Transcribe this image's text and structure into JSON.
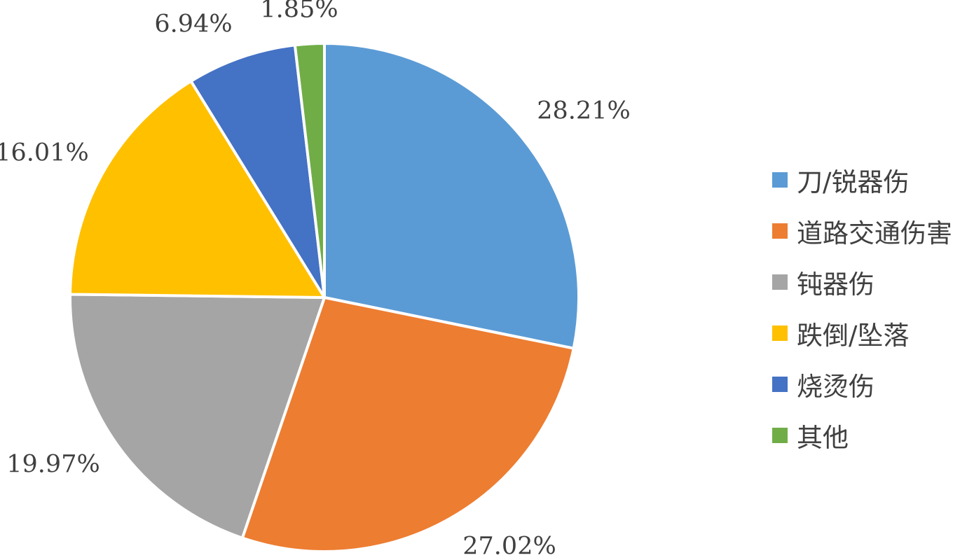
{
  "chart_data": {
    "type": "pie",
    "title": "",
    "categories": [
      "刀/锐器伤",
      "道路交通伤害",
      "钝器伤",
      "跌倒/坠落",
      "烧烫伤",
      "其他"
    ],
    "values": [
      28.21,
      27.02,
      19.97,
      16.01,
      6.94,
      1.85
    ],
    "value_labels": [
      "28.21%",
      "27.02%",
      "19.97%",
      "16.01%",
      "6.94%",
      "1.85%"
    ],
    "colors": [
      "#5b9bd5",
      "#ed7d31",
      "#a5a5a5",
      "#ffc000",
      "#4472c4",
      "#70ad47"
    ],
    "start_angle_deg": 0,
    "direction": "clockwise",
    "legend_position": "right"
  }
}
